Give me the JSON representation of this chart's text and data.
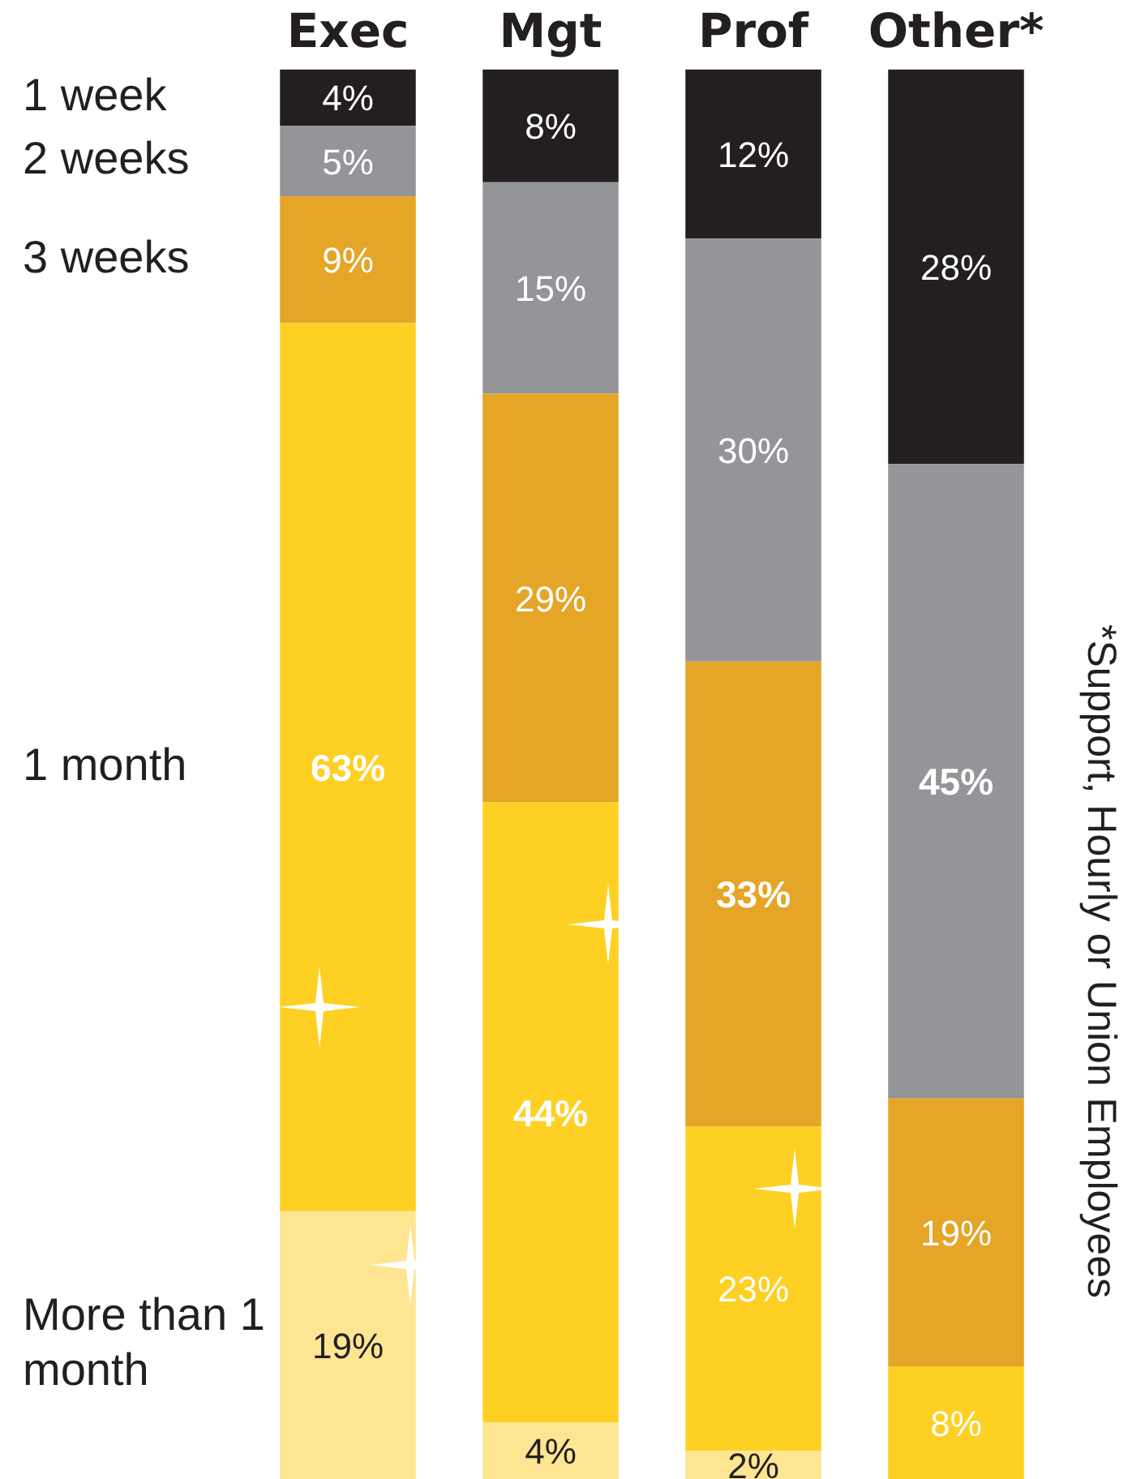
{
  "chart_data": {
    "type": "bar",
    "stacked": true,
    "legend": "left",
    "categories": [
      "Exec",
      "Mgt",
      "Prof",
      "Other*"
    ],
    "series": [
      {
        "name": "More than 1 month",
        "color": "#fee592",
        "values": [
          19,
          4,
          2,
          null
        ],
        "value_labels": [
          "19%",
          "4%",
          "2%",
          null
        ]
      },
      {
        "name": "1 month",
        "color": "#fdd023",
        "values": [
          63,
          44,
          23,
          8
        ],
        "value_labels": [
          "63%",
          "44%",
          "23%",
          "8%"
        ]
      },
      {
        "name": "3 weeks",
        "color": "#e5a526",
        "values": [
          9,
          29,
          33,
          19
        ],
        "value_labels": [
          "9%",
          "29%",
          "33%",
          "19%"
        ]
      },
      {
        "name": "2 weeks",
        "color": "#939598",
        "values": [
          5,
          15,
          30,
          45
        ],
        "value_labels": [
          "5%",
          "15%",
          "30%",
          "45%"
        ]
      },
      {
        "name": "1 week",
        "color": "#231f20",
        "values": [
          4,
          8,
          12,
          28
        ],
        "value_labels": [
          "4%",
          "8%",
          "12%",
          "28%"
        ]
      }
    ],
    "annotations": [
      "*Support, Hourly or Union Employees"
    ]
  }
}
